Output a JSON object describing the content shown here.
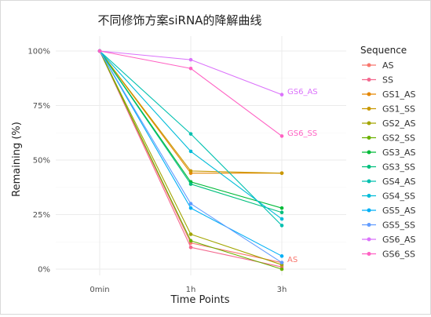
{
  "chart_data": {
    "type": "line",
    "title": "不同修饰方案siRNA的降解曲线",
    "xlabel": "Time Points",
    "ylabel": "Remaining (%)",
    "categories": [
      "0min",
      "1h",
      "3h"
    ],
    "ylim": [
      0,
      100
    ],
    "y_ticks": [
      0,
      25,
      50,
      75,
      100
    ],
    "y_tick_labels": [
      "0%",
      "25%",
      "50%",
      "75%",
      "100%"
    ],
    "grid": true,
    "legend": {
      "title": "Sequence",
      "position": "right"
    },
    "series": [
      {
        "name": "AS",
        "color": "#F8766D",
        "values": [
          100,
          12,
          3
        ]
      },
      {
        "name": "SS",
        "color": "#F3698F",
        "values": [
          100,
          10,
          1
        ]
      },
      {
        "name": "GS1_AS",
        "color": "#E58700",
        "values": [
          100,
          44,
          44
        ]
      },
      {
        "name": "GS1_SS",
        "color": "#C99800",
        "values": [
          100,
          45,
          44
        ]
      },
      {
        "name": "GS2_AS",
        "color": "#A3A500",
        "values": [
          100,
          16,
          2
        ]
      },
      {
        "name": "GS2_SS",
        "color": "#6BB100",
        "values": [
          100,
          13,
          0
        ]
      },
      {
        "name": "GS3_AS",
        "color": "#00BA38",
        "values": [
          100,
          40,
          28
        ]
      },
      {
        "name": "GS3_SS",
        "color": "#00BF7D",
        "values": [
          100,
          39,
          26
        ]
      },
      {
        "name": "GS4_AS",
        "color": "#00C0AF",
        "values": [
          100,
          62,
          20
        ]
      },
      {
        "name": "GS4_SS",
        "color": "#00BCD8",
        "values": [
          100,
          54,
          23
        ]
      },
      {
        "name": "GS5_AS",
        "color": "#00B0F6",
        "values": [
          100,
          28,
          6
        ]
      },
      {
        "name": "GS5_SS",
        "color": "#619CFF",
        "values": [
          100,
          30,
          3
        ]
      },
      {
        "name": "GS6_AS",
        "color": "#DB72FB",
        "values": [
          100,
          96,
          80
        ]
      },
      {
        "name": "GS6_SS",
        "color": "#FF61C3",
        "values": [
          100,
          92,
          61
        ]
      }
    ],
    "annotations": [
      {
        "text": "GS6_AS",
        "series": "GS6_AS",
        "category": "3h",
        "color": "#DB72FB"
      },
      {
        "text": "GS6_SS",
        "series": "GS6_SS",
        "category": "3h",
        "color": "#FF61C3"
      },
      {
        "text": "AS",
        "series": "AS",
        "category": "3h",
        "color": "#F8766D"
      }
    ]
  }
}
